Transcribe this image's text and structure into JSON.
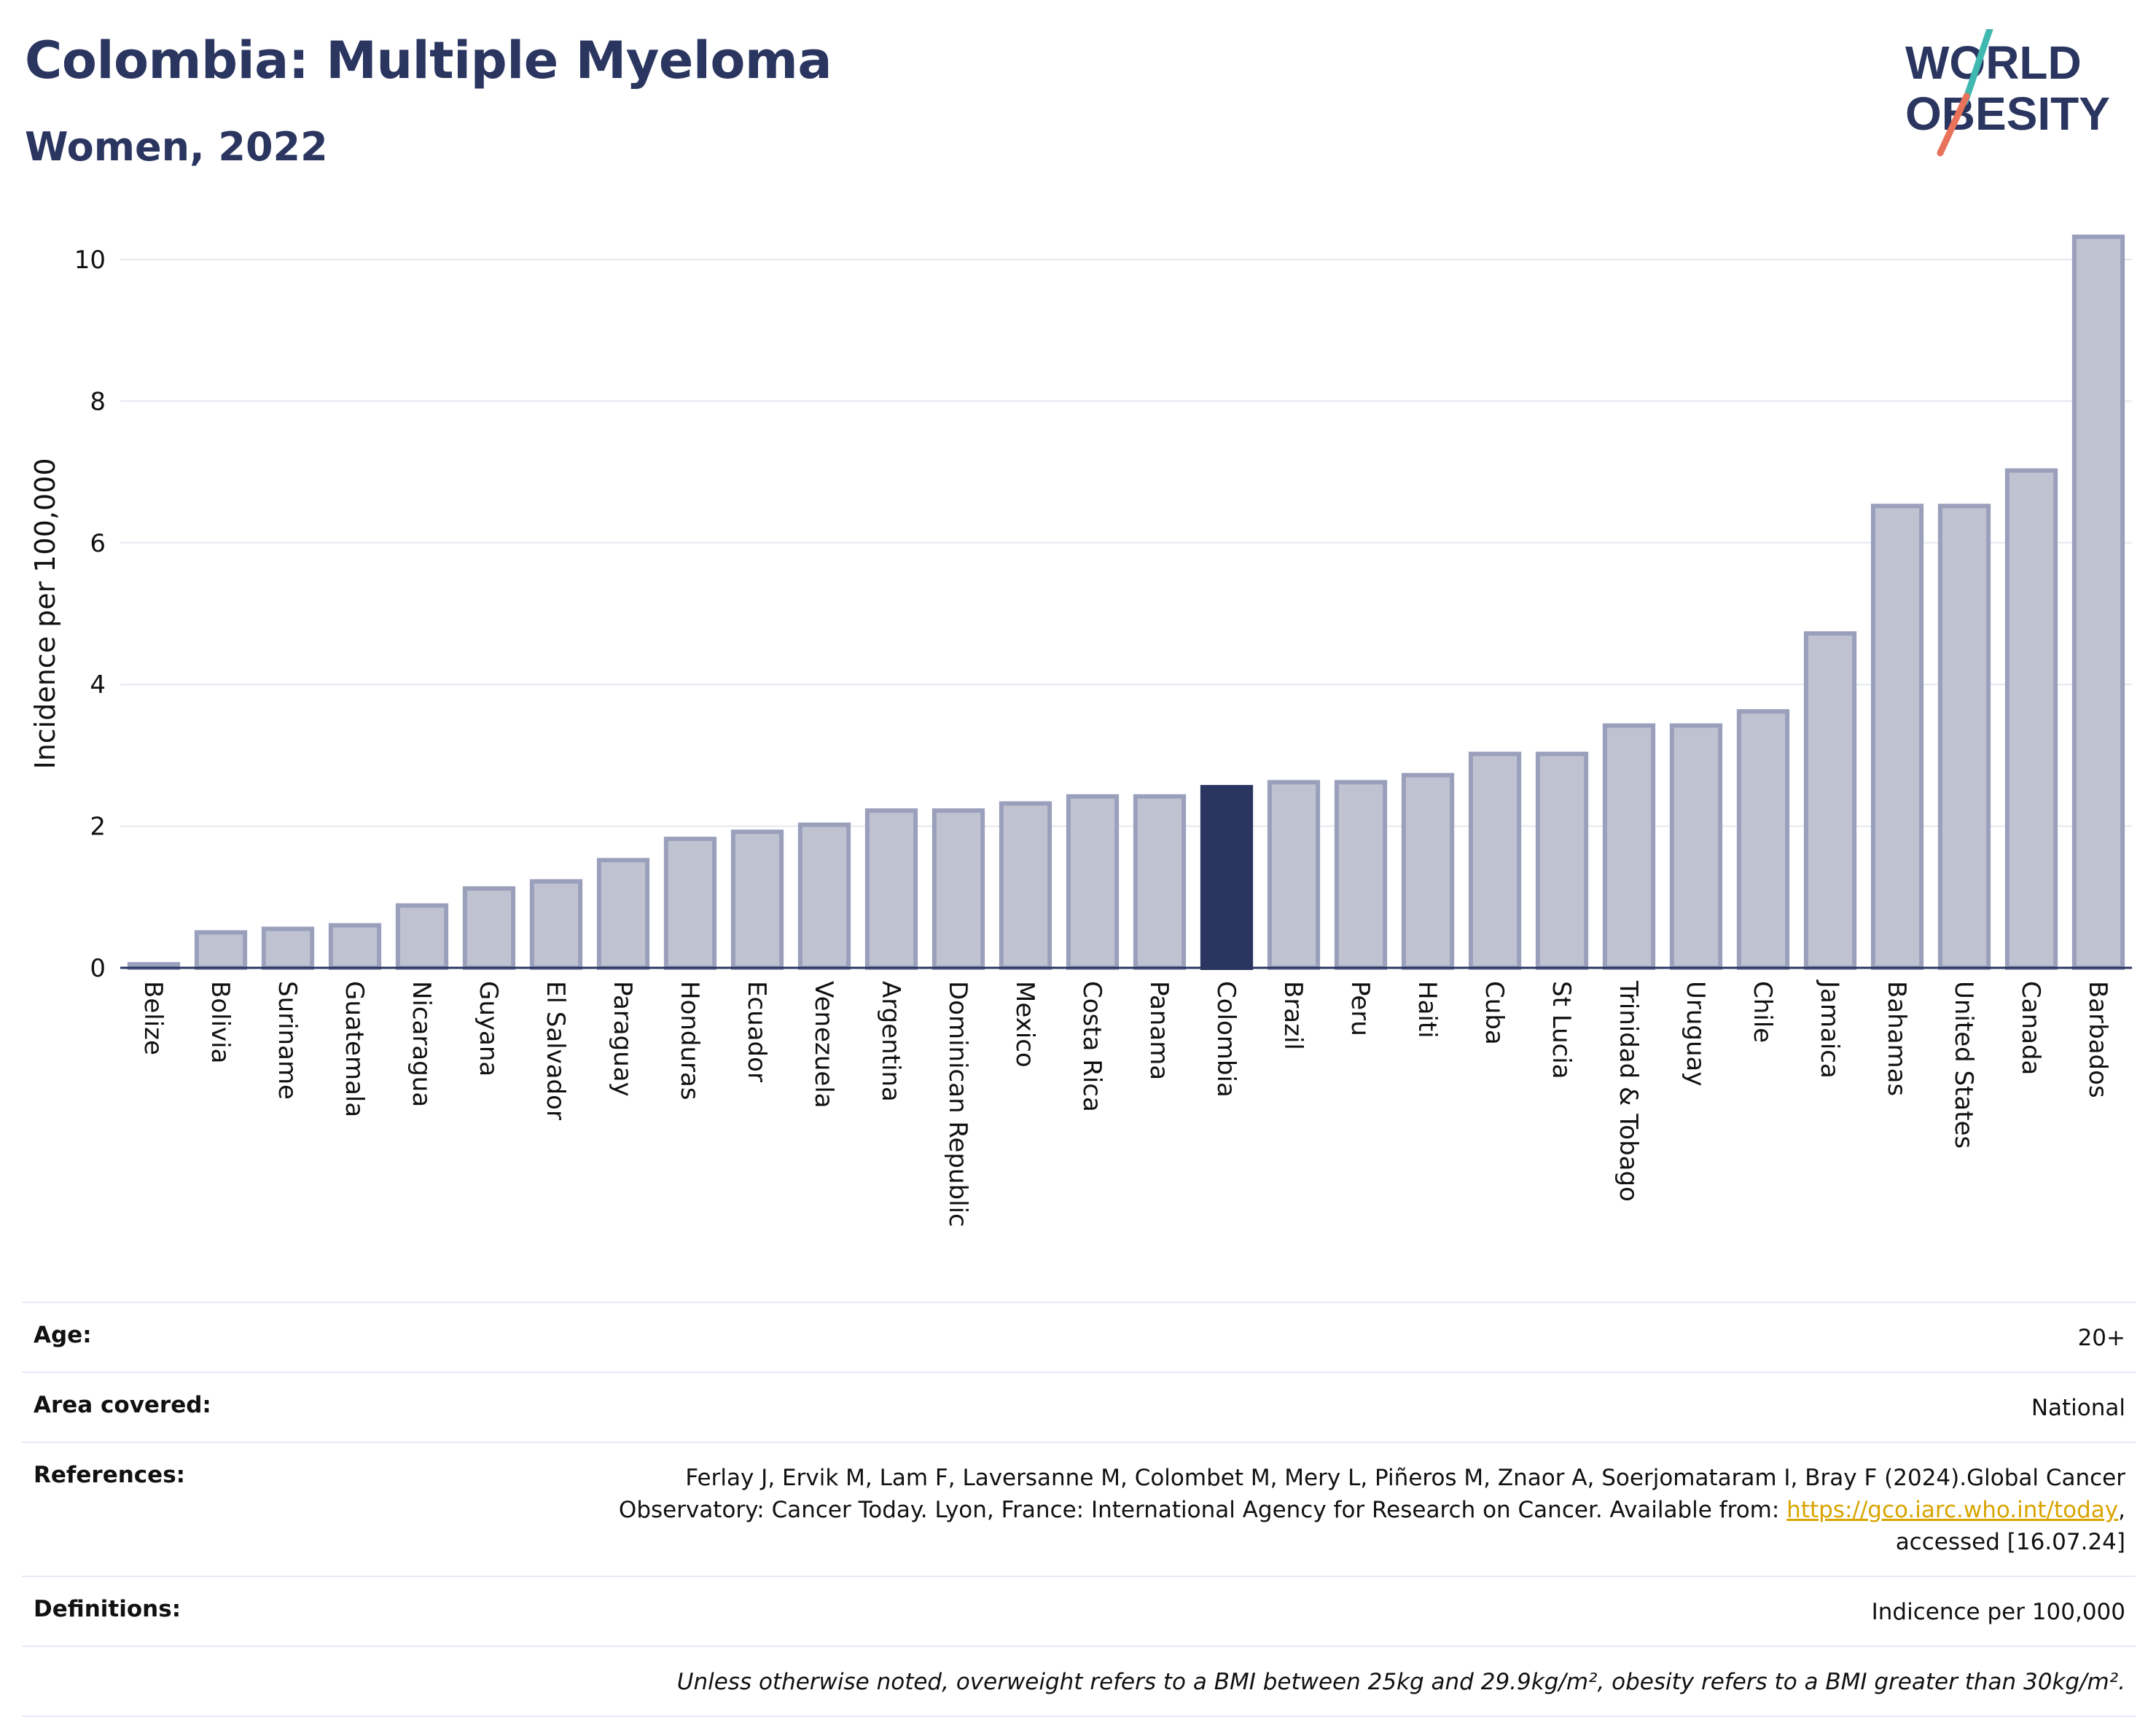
{
  "header": {
    "title": "Colombia: Multiple Myeloma",
    "subtitle": "Women, 2022"
  },
  "logo": {
    "line1": "WORLD",
    "line2": "OBESITY",
    "slash_color_top": "#3fb8b0",
    "slash_color_bottom": "#e8735a",
    "text_color": "#2a3560"
  },
  "chart_data": {
    "type": "bar",
    "ylabel": "Incidence per 100,000",
    "xlabel": "",
    "ylim": [
      0,
      10.5
    ],
    "yticks": [
      0,
      2,
      4,
      6,
      8,
      10
    ],
    "grid": true,
    "highlight": "Colombia",
    "colors": {
      "bar_fill": "#bfc3d1",
      "bar_stroke": "#9a9fbb",
      "highlight_fill": "#2a3560",
      "grid": "#e6e8f0",
      "axis": "#2a3560"
    },
    "categories": [
      "Belize",
      "Bolivia",
      "Suriname",
      "Guatemala",
      "Nicaragua",
      "Guyana",
      "El Salvador",
      "Paraguay",
      "Honduras",
      "Ecuador",
      "Venezuela",
      "Argentina",
      "Dominican Republic",
      "Mexico",
      "Costa Rica",
      "Panama",
      "Colombia",
      "Brazil",
      "Peru",
      "Haiti",
      "Cuba",
      "St Lucia",
      "Trinidad & Tobago",
      "Uruguay",
      "Chile",
      "Jamaica",
      "Bahamas",
      "United States",
      "Canada",
      "Barbados"
    ],
    "values": [
      0.05,
      0.5,
      0.55,
      0.6,
      0.88,
      1.12,
      1.22,
      1.52,
      1.82,
      1.92,
      2.02,
      2.22,
      2.22,
      2.32,
      2.42,
      2.42,
      2.55,
      2.62,
      2.62,
      2.72,
      3.02,
      3.02,
      3.42,
      3.42,
      3.62,
      4.72,
      6.52,
      6.52,
      7.02,
      10.32
    ]
  },
  "info": {
    "rows": [
      {
        "label": "Age:",
        "value": "20+"
      },
      {
        "label": "Area covered:",
        "value": "National"
      },
      {
        "label": "References:",
        "value_pre": "Ferlay J, Ervik M, Lam F, Laversanne M, Colombet M, Mery L, Piñeros M, Znaor A, Soerjomataram I, Bray F (2024).Global Cancer Observatory: Cancer Today. Lyon, France: International Agency for Research on Cancer. Available from: ",
        "link": "https://gco.iarc.who.int/today",
        "value_post": ", accessed [16.07.24]"
      },
      {
        "label": "Definitions:",
        "value": "Indicence per 100,000"
      }
    ],
    "note": "Unless otherwise noted, overweight refers to a BMI between 25kg and 29.9kg/m², obesity refers to a BMI greater than 30kg/m²."
  }
}
